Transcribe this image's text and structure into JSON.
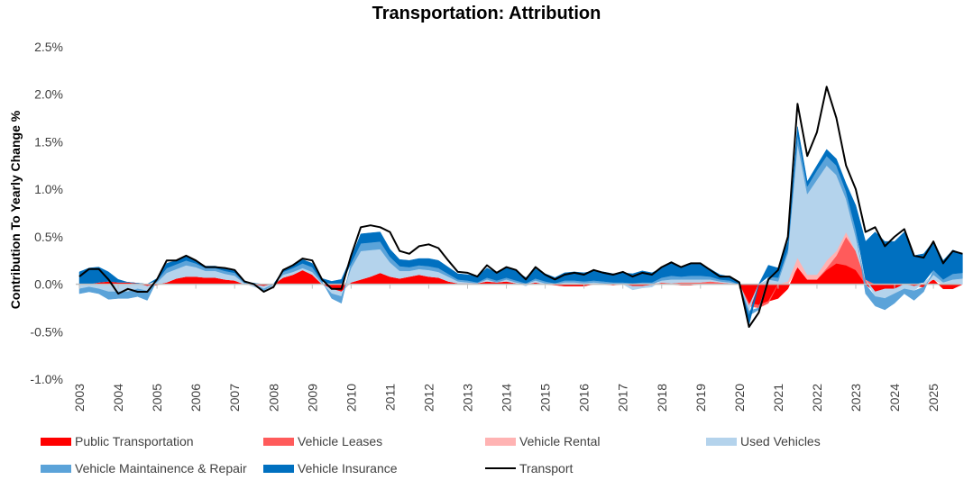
{
  "chart_data": {
    "type": "area",
    "title": "Transportation: Attribution",
    "ylabel": "Contribution To Yearly Change %",
    "xlabel": "",
    "ylim": [
      -1.0,
      2.5
    ],
    "yticks": [
      "-1.0%",
      "-0.5%",
      "0.0%",
      "0.5%",
      "1.0%",
      "1.5%",
      "2.0%",
      "2.5%"
    ],
    "ytick_values": [
      -1.0,
      -0.5,
      0.0,
      0.5,
      1.0,
      1.5,
      2.0,
      2.5
    ],
    "xticks": [
      "2003",
      "2004",
      "2005",
      "2006",
      "2007",
      "2008",
      "2009",
      "2010",
      "2011",
      "2012",
      "2013",
      "2014",
      "2015",
      "2016",
      "2017",
      "2018",
      "2019",
      "2020",
      "2021",
      "2022",
      "2023",
      "2024",
      "2025"
    ],
    "x_start": 2003.0,
    "x_step": 0.25,
    "legend_position": "bottom",
    "series": [
      {
        "name": "Public Transportation",
        "kind": "area",
        "color": "#FF0000",
        "values": [
          0,
          0,
          0.02,
          0.03,
          0.02,
          0.02,
          0.01,
          -0.02,
          -0.01,
          0.02,
          0.06,
          0.08,
          0.08,
          0.07,
          0.07,
          0.05,
          0.04,
          0,
          -0.01,
          -0.02,
          0,
          0.07,
          0.1,
          0.15,
          0.1,
          0,
          -0.05,
          -0.08,
          0.02,
          0.05,
          0.08,
          0.12,
          0.08,
          0.06,
          0.08,
          0.1,
          0.08,
          0.07,
          0.03,
          0.01,
          0.01,
          0.01,
          0.03,
          0.02,
          0.03,
          0.01,
          0,
          0.02,
          0,
          -0.01,
          -0.02,
          -0.02,
          -0.02,
          0,
          0,
          -0.01,
          0,
          -0.02,
          -0.02,
          -0.01,
          0.01,
          0,
          -0.01,
          -0.01,
          0,
          0,
          0,
          0,
          0,
          -0.2,
          -0.22,
          -0.18,
          -0.15,
          -0.05,
          0.18,
          0.05,
          0.05,
          0.15,
          0.22,
          0.2,
          0.15,
          0,
          -0.08,
          -0.05,
          -0.05,
          0,
          -0.02,
          -0.03,
          0.05,
          -0.05,
          -0.05,
          0
        ]
      },
      {
        "name": "Vehicle Leases",
        "kind": "area",
        "color": "#FF5B5B",
        "values": [
          0,
          0,
          0,
          0,
          0,
          0,
          0,
          0,
          0,
          0,
          0,
          0,
          0,
          0,
          0,
          0,
          0,
          0,
          0,
          0,
          0,
          0,
          0,
          0,
          0,
          0,
          0,
          0,
          0,
          0,
          0,
          0,
          0,
          0,
          0,
          0,
          0,
          0,
          0,
          0,
          0,
          0,
          0,
          0,
          0,
          0,
          0,
          0,
          0,
          0,
          0,
          0,
          0,
          0,
          0,
          0,
          0,
          0,
          0,
          0,
          0.01,
          0.01,
          0.02,
          0.02,
          0.02,
          0.03,
          0.02,
          0.01,
          0,
          -0.03,
          -0.03,
          -0.02,
          0,
          0,
          0,
          0,
          0,
          0.02,
          0.08,
          0.3,
          0.2,
          0.05,
          0,
          0,
          0,
          0,
          0,
          0,
          0,
          0,
          0,
          0
        ]
      },
      {
        "name": "Vehicle Rental",
        "kind": "area",
        "color": "#FFB3B3",
        "values": [
          0,
          0,
          0,
          0,
          0,
          0,
          0,
          0,
          0,
          0,
          0,
          0,
          0,
          0,
          0,
          0,
          0,
          0,
          0,
          0,
          0,
          0,
          0,
          0,
          0,
          0,
          0,
          0,
          0,
          0,
          0,
          0,
          0,
          0,
          0,
          0,
          0,
          0,
          0,
          0,
          0,
          0,
          0,
          0,
          0,
          0,
          0,
          0,
          0,
          0,
          0,
          0,
          0,
          0,
          0,
          0,
          0,
          0,
          0,
          0,
          0,
          0,
          0,
          0,
          0,
          0,
          0,
          0,
          0,
          0,
          0,
          0,
          0,
          0.03,
          0.1,
          0.05,
          0.05,
          0.08,
          0.05,
          0.05,
          0,
          0,
          0,
          0,
          0,
          0,
          0,
          0,
          0,
          0,
          0,
          0
        ]
      },
      {
        "name": "Used Vehicles",
        "kind": "area",
        "color": "#B4D3EC",
        "values": [
          -0.05,
          -0.03,
          -0.05,
          -0.08,
          -0.08,
          -0.08,
          -0.05,
          -0.05,
          0.02,
          0.1,
          0.1,
          0.12,
          0.1,
          0.07,
          0.07,
          0.06,
          0.05,
          0.01,
          -0.02,
          -0.03,
          -0.03,
          0.03,
          0.03,
          0.02,
          0.03,
          0.01,
          -0.05,
          -0.05,
          0.15,
          0.3,
          0.28,
          0.25,
          0.15,
          0.08,
          0.06,
          0.06,
          0.07,
          0.06,
          0.05,
          0.02,
          0.01,
          0,
          0.02,
          0,
          0.02,
          0.01,
          -0.02,
          0.02,
          0.01,
          0,
          0.02,
          0.02,
          0.01,
          0.02,
          0.01,
          0,
          0,
          -0.04,
          -0.02,
          -0.02,
          0.02,
          0.04,
          0.03,
          0.03,
          0.03,
          0.02,
          0.01,
          0.01,
          0,
          -0.05,
          0,
          0.05,
          0.03,
          0.3,
          1.2,
          0.85,
          1.0,
          1.0,
          0.8,
          0.35,
          0.15,
          0,
          -0.05,
          -0.1,
          -0.05,
          -0.05,
          -0.05,
          0.02,
          0.05,
          0.02,
          0.05,
          0.06
        ]
      },
      {
        "name": "Vehicle Maintainence & Repair",
        "kind": "area",
        "color": "#5BA3D9",
        "values": [
          -0.05,
          -0.05,
          -0.05,
          -0.08,
          -0.07,
          -0.07,
          -0.08,
          -0.1,
          0.02,
          0.05,
          0.05,
          0.05,
          0.04,
          0.03,
          0.03,
          0.03,
          0.03,
          0.01,
          0,
          -0.02,
          0,
          0.03,
          0.04,
          0.05,
          0.05,
          0.02,
          -0.05,
          -0.07,
          0.05,
          0.08,
          0.08,
          0.08,
          0.06,
          0.05,
          0.04,
          0.04,
          0.04,
          0.04,
          0.03,
          0.02,
          0.02,
          0.01,
          0.02,
          0.02,
          0.02,
          0.02,
          0.01,
          0.02,
          0.02,
          0.01,
          0.02,
          0.02,
          0.02,
          0.02,
          0.02,
          0.02,
          0.02,
          0.01,
          0.02,
          0.02,
          0.03,
          0.04,
          0.03,
          0.04,
          0.04,
          0.03,
          0.02,
          0.02,
          0,
          -0.05,
          -0.02,
          0.03,
          0.04,
          0.04,
          0.1,
          0.08,
          0.1,
          0.1,
          0.1,
          0.08,
          0.08,
          -0.1,
          -0.1,
          -0.12,
          -0.1,
          -0.05,
          -0.1,
          -0.05,
          0.05,
          0.03,
          0.06,
          0.06
        ]
      },
      {
        "name": "Vehicle Insurance",
        "kind": "area",
        "color": "#0070C0",
        "values": [
          0.13,
          0.17,
          0.16,
          0.1,
          0.03,
          0,
          0,
          0,
          0.02,
          0.05,
          0.04,
          0.04,
          0.03,
          0.02,
          0.02,
          0.02,
          0.02,
          0.01,
          0.01,
          0,
          0,
          0.02,
          0.03,
          0.04,
          0.04,
          0.03,
          0.03,
          0.05,
          0.06,
          0.1,
          0.1,
          0.1,
          0.08,
          0.07,
          0.07,
          0.07,
          0.08,
          0.08,
          0.07,
          0.06,
          0.06,
          0.06,
          0.1,
          0.08,
          0.1,
          0.1,
          0.06,
          0.1,
          0.08,
          0.06,
          0.08,
          0.09,
          0.09,
          0.1,
          0.1,
          0.09,
          0.1,
          0.1,
          0.12,
          0.1,
          0.1,
          0.13,
          0.1,
          0.12,
          0.12,
          0.08,
          0.05,
          0.04,
          0.02,
          -0.1,
          0,
          0.12,
          0.1,
          0.08,
          0.08,
          0.05,
          0.05,
          0.07,
          0.07,
          0.08,
          0.25,
          0.4,
          0.55,
          0.45,
          0.45,
          0.55,
          0.3,
          0.3,
          0.3,
          0.2,
          0.25,
          0.2
        ]
      },
      {
        "name": "Transport",
        "kind": "line",
        "color": "#000000",
        "values": [
          0.08,
          0.16,
          0.16,
          0.05,
          -0.1,
          -0.05,
          -0.08,
          -0.08,
          0.05,
          0.25,
          0.25,
          0.3,
          0.25,
          0.18,
          0.18,
          0.17,
          0.15,
          0.03,
          0,
          -0.08,
          -0.03,
          0.15,
          0.2,
          0.27,
          0.25,
          0.05,
          -0.05,
          -0.05,
          0.3,
          0.6,
          0.62,
          0.6,
          0.55,
          0.35,
          0.32,
          0.4,
          0.42,
          0.38,
          0.25,
          0.13,
          0.12,
          0.08,
          0.2,
          0.12,
          0.18,
          0.15,
          0.05,
          0.18,
          0.1,
          0.05,
          0.1,
          0.12,
          0.1,
          0.15,
          0.12,
          0.1,
          0.13,
          0.08,
          0.12,
          0.1,
          0.18,
          0.23,
          0.18,
          0.22,
          0.22,
          0.15,
          0.08,
          0.08,
          0.02,
          -0.45,
          -0.3,
          0.05,
          0.15,
          0.5,
          1.9,
          1.35,
          1.6,
          2.08,
          1.75,
          1.25,
          1.0,
          0.55,
          0.6,
          0.4,
          0.5,
          0.58,
          0.3,
          0.28,
          0.45,
          0.22,
          0.35,
          0.32
        ]
      }
    ]
  }
}
